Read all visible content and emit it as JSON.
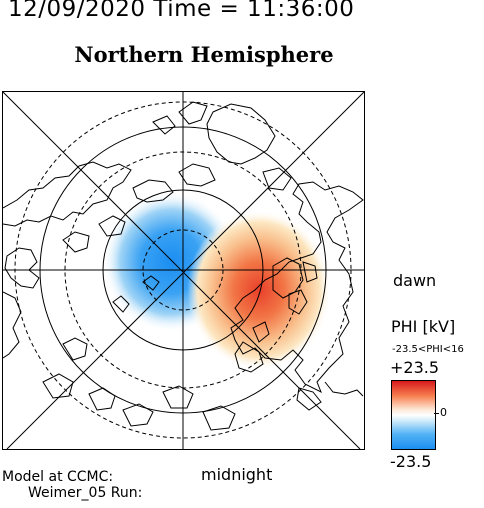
{
  "header": {
    "datetime": "12/09/2020 Time = 11:36:00",
    "title": "Northern Hemisphere"
  },
  "map": {
    "labels": {
      "dawn": "dawn",
      "midnight": "midnight"
    },
    "colors": {
      "positive": "#d7191c",
      "negative": "#1b8ef2",
      "background": "#ffffff",
      "coast": "#000000"
    },
    "contour_style": {
      "solid_circles": 2,
      "dashed_circles": 4,
      "meridian_lines": 8
    }
  },
  "colorbar": {
    "title": "PHI [kV]",
    "range_text": "-23.5<PHI<16",
    "max_label": "+23.5",
    "min_label": "-23.5",
    "zero_label": "0"
  },
  "footer": {
    "model": "Model at CCMC:",
    "run": "Weimer_05 Run:"
  }
}
